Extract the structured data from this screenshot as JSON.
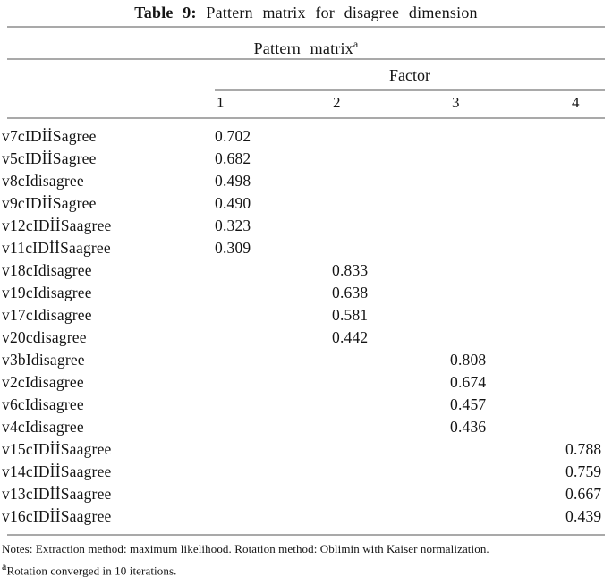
{
  "title": {
    "prefix": "Table 9:",
    "text": " Pattern matrix for disagree dimension"
  },
  "matrix": {
    "caption": "Pattern matrix",
    "caption_sup": "a",
    "factor_label": "Factor",
    "columns": [
      "1",
      "2",
      "3",
      "4"
    ],
    "rows": [
      {
        "label": "v7cIDİİSagree",
        "values": [
          "0.702",
          "",
          "",
          ""
        ]
      },
      {
        "label": "v5cIDİİSagree",
        "values": [
          "0.682",
          "",
          "",
          ""
        ]
      },
      {
        "label": "v8cIdisagree",
        "values": [
          "0.498",
          "",
          "",
          ""
        ]
      },
      {
        "label": "v9cIDİİSagree",
        "values": [
          "0.490",
          "",
          "",
          ""
        ]
      },
      {
        "label": "v12cIDİİSaagree",
        "values": [
          "0.323",
          "",
          "",
          ""
        ]
      },
      {
        "label": "v11cIDİİSaagree",
        "values": [
          "0.309",
          "",
          "",
          ""
        ]
      },
      {
        "label": "v18cIdisagree",
        "values": [
          "",
          "0.833",
          "",
          ""
        ]
      },
      {
        "label": "v19cIdisagree",
        "values": [
          "",
          "0.638",
          "",
          ""
        ]
      },
      {
        "label": "v17cIdisagree",
        "values": [
          "",
          "0.581",
          "",
          ""
        ]
      },
      {
        "label": "v20cdisagree",
        "values": [
          "",
          "0.442",
          "",
          ""
        ]
      },
      {
        "label": "v3bIdisagree",
        "values": [
          "",
          "",
          "0.808",
          ""
        ]
      },
      {
        "label": "v2cIdisagree",
        "values": [
          "",
          "",
          "0.674",
          ""
        ]
      },
      {
        "label": "v6cIdisagree",
        "values": [
          "",
          "",
          "0.457",
          ""
        ]
      },
      {
        "label": "v4cIdisagree",
        "values": [
          "",
          "",
          "0.436",
          ""
        ]
      },
      {
        "label": "v15cIDİİSaagree",
        "values": [
          "",
          "",
          "",
          "0.788"
        ]
      },
      {
        "label": "v14cIDİİSaagree",
        "values": [
          "",
          "",
          "",
          "0.759"
        ]
      },
      {
        "label": "v13cIDİİSaagree",
        "values": [
          "",
          "",
          "",
          "0.667"
        ]
      },
      {
        "label": "v16cIDİİSaagree",
        "values": [
          "",
          "",
          "",
          "0.439"
        ]
      }
    ]
  },
  "notes": {
    "line1": "Notes: Extraction method: maximum likelihood. Rotation method: Oblimin with Kaiser normalization.",
    "line2_sup": "a",
    "line2": "Rotation converged in 10 iterations."
  }
}
